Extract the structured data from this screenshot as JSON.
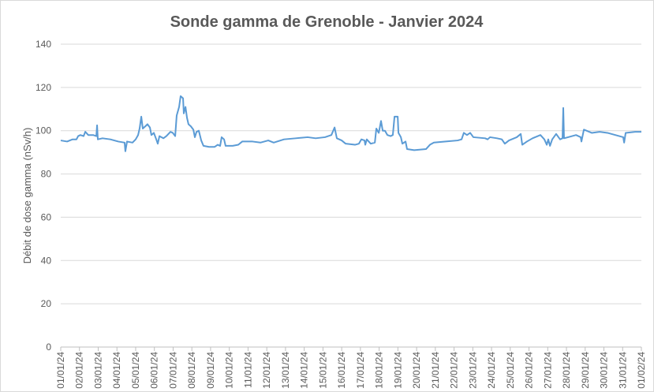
{
  "chart_data": {
    "type": "line",
    "title": "Sonde gamma de Grenoble - Janvier 2024",
    "y_label": "Débit de dose gamma (nSv/h)",
    "xlim": [
      0,
      31
    ],
    "xticks": [
      {
        "value": 0,
        "label": "01/01/24"
      },
      {
        "value": 1,
        "label": "02/01/24"
      },
      {
        "value": 2,
        "label": "03/01/24"
      },
      {
        "value": 3,
        "label": "04/01/24"
      },
      {
        "value": 4,
        "label": "05/01/24"
      },
      {
        "value": 5,
        "label": "06/01/24"
      },
      {
        "value": 6,
        "label": "07/01/24"
      },
      {
        "value": 7,
        "label": "08/01/24"
      },
      {
        "value": 8,
        "label": "09/01/24"
      },
      {
        "value": 9,
        "label": "10/01/24"
      },
      {
        "value": 10,
        "label": "11/01/24"
      },
      {
        "value": 11,
        "label": "12/01/24"
      },
      {
        "value": 12,
        "label": "13/01/24"
      },
      {
        "value": 13,
        "label": "14/01/24"
      },
      {
        "value": 14,
        "label": "15/01/24"
      },
      {
        "value": 15,
        "label": "16/01/24"
      },
      {
        "value": 16,
        "label": "17/01/24"
      },
      {
        "value": 17,
        "label": "18/01/24"
      },
      {
        "value": 18,
        "label": "19/01/24"
      },
      {
        "value": 19,
        "label": "20/01/24"
      },
      {
        "value": 20,
        "label": "21/01/24"
      },
      {
        "value": 21,
        "label": "22/01/24"
      },
      {
        "value": 22,
        "label": "23/01/24"
      },
      {
        "value": 23,
        "label": "24/01/24"
      },
      {
        "value": 24,
        "label": "25/01/24"
      },
      {
        "value": 25,
        "label": "26/01/24"
      },
      {
        "value": 26,
        "label": "27/01/24"
      },
      {
        "value": 27,
        "label": "28/01/24"
      },
      {
        "value": 28,
        "label": "29/01/24"
      },
      {
        "value": 29,
        "label": "30/01/24"
      },
      {
        "value": 30,
        "label": "31/01/24"
      },
      {
        "value": 31,
        "label": "01/02/24"
      }
    ],
    "ylim": [
      0,
      140
    ],
    "yticks": [
      0,
      20,
      40,
      60,
      80,
      100,
      120,
      140
    ],
    "grid": true,
    "x": [
      0,
      0.34,
      0.63,
      0.84,
      0.93,
      1.05,
      1.22,
      1.31,
      1.47,
      1.73,
      1.9,
      1.94,
      1.98,
      2.23,
      2.65,
      3.07,
      3.41,
      3.45,
      3.54,
      3.83,
      4,
      4.13,
      4.21,
      4.3,
      4.38,
      4.51,
      4.63,
      4.76,
      4.84,
      4.97,
      5.1,
      5.18,
      5.27,
      5.48,
      5.64,
      5.86,
      5.98,
      6.11,
      6.19,
      6.32,
      6.4,
      6.53,
      6.57,
      6.66,
      6.74,
      6.82,
      6.95,
      7.08,
      7.16,
      7.25,
      7.37,
      7.5,
      7.62,
      7.92,
      8.21,
      8.38,
      8.51,
      8.59,
      8.72,
      8.8,
      9.18,
      9.48,
      9.69,
      10.24,
      10.66,
      11.08,
      11.37,
      11.92,
      12.55,
      13.18,
      13.61,
      14.11,
      14.45,
      14.62,
      14.74,
      15,
      15.21,
      15.71,
      15.92,
      16.05,
      16.22,
      16.26,
      16.34,
      16.55,
      16.77,
      16.85,
      16.98,
      17.1,
      17.19,
      17.31,
      17.44,
      17.61,
      17.73,
      17.82,
      17.99,
      18.03,
      18.16,
      18.24,
      18.41,
      18.49,
      18.87,
      19.5,
      19.71,
      19.92,
      20.56,
      21.19,
      21.4,
      21.52,
      21.69,
      21.86,
      22.03,
      22.66,
      22.79,
      22.92,
      23.29,
      23.55,
      23.71,
      23.93,
      24.35,
      24.56,
      24.64,
      24.89,
      25.19,
      25.61,
      25.82,
      25.95,
      26.03,
      26.12,
      26.24,
      26.45,
      26.66,
      26.79,
      26.83,
      26.87,
      27.09,
      27.51,
      27.76,
      27.8,
      27.93,
      28.35,
      28.77,
      29.19,
      29.61,
      30.03,
      30.08,
      30.16,
      30.67,
      31
    ],
    "series": [
      {
        "color": "#5b9bd5",
        "values": [
          95.5,
          95,
          96,
          96,
          97.5,
          98,
          97.5,
          99.5,
          98,
          98,
          97.5,
          102.5,
          96,
          96.5,
          96,
          95,
          94.5,
          90.5,
          95,
          94.5,
          96,
          98,
          101,
          106.5,
          101,
          102,
          103,
          101.5,
          98,
          99,
          96,
          94,
          97.5,
          96.5,
          97.5,
          99.5,
          99,
          97.5,
          107,
          111,
          116,
          115,
          108,
          111,
          106,
          103,
          102,
          100.5,
          97,
          99.5,
          100,
          95.5,
          93,
          92.5,
          92.5,
          93.5,
          93,
          97,
          96,
          93,
          93,
          93.5,
          95,
          95,
          94.5,
          95.5,
          94.5,
          96,
          96.5,
          97,
          96.5,
          97,
          98,
          101.5,
          96.5,
          95.5,
          94,
          93.5,
          94,
          96,
          95.5,
          93.5,
          96,
          94,
          94.5,
          101,
          99,
          104.5,
          100,
          100,
          98,
          97.5,
          98,
          106.5,
          106.5,
          99,
          97,
          94,
          95,
          91.5,
          91,
          91.5,
          93.5,
          94.5,
          95,
          95.5,
          96,
          99,
          98,
          99,
          97,
          96.5,
          96,
          97,
          96.5,
          96,
          94,
          95.5,
          97,
          98.5,
          93.5,
          95,
          96.5,
          98,
          96,
          93.5,
          96,
          93,
          96,
          98.5,
          96,
          96.5,
          110.5,
          96.5,
          97,
          98,
          97,
          95,
          100.5,
          99,
          99.5,
          99,
          98,
          97,
          94.5,
          99,
          99.5,
          99.5
        ]
      }
    ]
  }
}
